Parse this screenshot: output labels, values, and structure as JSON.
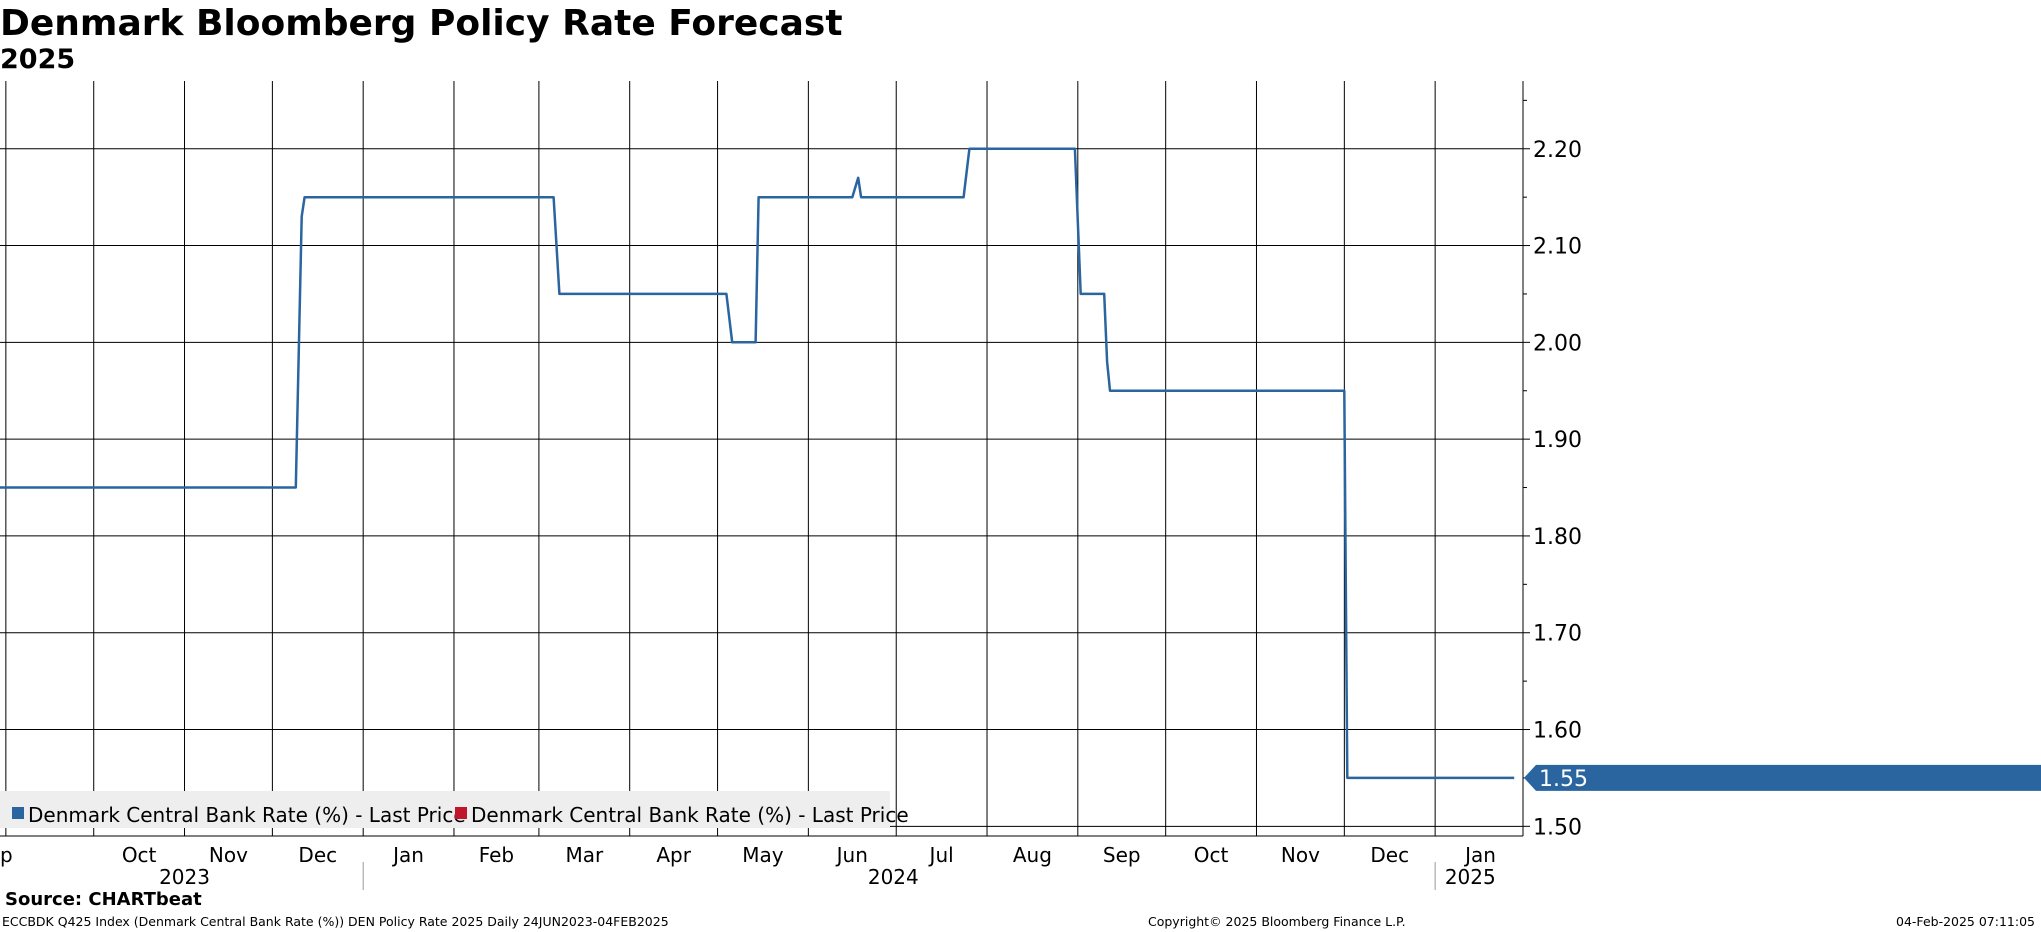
{
  "header": {
    "title": "Denmark Bloomberg Policy Rate Forecast",
    "subtitle": "2025"
  },
  "footer": {
    "source": "Source: CHARTbeat",
    "ticker_info": "ECCBDK Q425 Index (Denmark Central Bank Rate (%)) DEN Policy Rate 2025  Daily 24JUN2023-04FEB2025",
    "copyright": "Copyright© 2025 Bloomberg Finance L.P.",
    "timestamp": "04-Feb-2025 07:11:05"
  },
  "colors": {
    "series_1": "#2a65a0",
    "series_2": "#c0152a",
    "grid": "#000000",
    "legend_bg": "#eeeeee"
  },
  "chart_data": {
    "type": "line",
    "x_axis": {
      "type": "date",
      "range": [
        "2023-08-30",
        "2025-01-31"
      ],
      "month_ticks": [
        "2023-09-01",
        "2023-10-01",
        "2023-11-01",
        "2023-12-01",
        "2024-01-01",
        "2024-02-01",
        "2024-03-01",
        "2024-04-01",
        "2024-05-01",
        "2024-06-01",
        "2024-07-01",
        "2024-08-01",
        "2024-09-01",
        "2024-10-01",
        "2024-11-01",
        "2024-12-01",
        "2025-01-01"
      ],
      "month_labels": [
        "Sep",
        "Oct",
        "Nov",
        "Dec",
        "Jan",
        "Feb",
        "Mar",
        "Apr",
        "May",
        "Jun",
        "Jul",
        "Aug",
        "Sep",
        "Oct",
        "Nov",
        "Dec",
        "Jan"
      ],
      "year_labels": [
        {
          "label": "2023",
          "date": "2023-11-01"
        },
        {
          "label": "2024",
          "date": "2024-06-30"
        },
        {
          "label": "2025",
          "date": "2025-01-13"
        }
      ],
      "year_separators": [
        "2024-01-01",
        "2025-01-01"
      ]
    },
    "y_axis": {
      "range": [
        1.49,
        2.27
      ],
      "ticks": [
        1.5,
        1.6,
        1.7,
        1.8,
        1.9,
        2.0,
        2.1,
        2.2
      ],
      "tick_labels": [
        "1.50",
        "1.60",
        "1.70",
        "1.80",
        "1.90",
        "2.00",
        "2.10",
        "2.20"
      ],
      "side": "right",
      "grid": true
    },
    "legend": {
      "placement": "bottom-left",
      "entries": [
        {
          "label": "Denmark Central Bank Rate (%) - Last Price",
          "color": "#2a65a0"
        },
        {
          "label": "Denmark Central Bank Rate (%) - Last Price",
          "color": "#c0152a"
        }
      ]
    },
    "last_value_label": "1.55",
    "series": [
      {
        "name": "Denmark Central Bank Rate (%) - Last Price",
        "color": "#2a65a0",
        "points": [
          [
            "2023-08-30",
            1.85
          ],
          [
            "2023-12-09",
            1.85
          ],
          [
            "2023-12-11",
            2.13
          ],
          [
            "2023-12-12",
            2.15
          ],
          [
            "2024-03-06",
            2.15
          ],
          [
            "2024-03-08",
            2.05
          ],
          [
            "2024-05-04",
            2.05
          ],
          [
            "2024-05-06",
            2.0
          ],
          [
            "2024-05-14",
            2.0
          ],
          [
            "2024-05-15",
            2.15
          ],
          [
            "2024-06-16",
            2.15
          ],
          [
            "2024-06-18",
            2.17
          ],
          [
            "2024-06-19",
            2.15
          ],
          [
            "2024-07-24",
            2.15
          ],
          [
            "2024-07-26",
            2.2
          ],
          [
            "2024-08-31",
            2.2
          ],
          [
            "2024-09-02",
            2.05
          ],
          [
            "2024-09-10",
            2.05
          ],
          [
            "2024-09-11",
            1.98
          ],
          [
            "2024-09-12",
            1.95
          ],
          [
            "2024-12-01",
            1.95
          ],
          [
            "2024-12-02",
            1.55
          ],
          [
            "2025-01-28",
            1.55
          ]
        ]
      }
    ]
  }
}
